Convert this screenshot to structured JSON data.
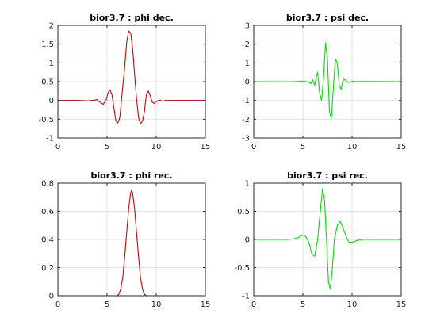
{
  "chart_data": [
    {
      "type": "line",
      "title": "bior3.7 : phi dec.",
      "xlim": [
        0,
        15
      ],
      "ylim": [
        -1,
        2
      ],
      "xticks": [
        0,
        5,
        10,
        15
      ],
      "yticks": [
        -1,
        -0.5,
        0,
        0.5,
        1,
        1.5,
        2
      ],
      "grid": true,
      "color": "#cc0000",
      "series": [
        {
          "x": [
            0,
            1,
            2,
            3,
            3.5,
            4,
            4.3,
            4.6,
            4.9,
            5.1,
            5.3,
            5.5,
            5.7,
            5.9,
            6.1,
            6.3,
            6.5,
            6.8,
            7.0,
            7.2,
            7.4,
            7.6,
            7.8,
            8.0,
            8.2,
            8.4,
            8.6,
            8.8,
            9.0,
            9.2,
            9.4,
            9.6,
            9.8,
            10.0,
            10.3,
            10.6,
            11,
            12,
            13,
            14,
            15
          ],
          "y": [
            0,
            0,
            0,
            -0.01,
            0,
            0.02,
            -0.05,
            -0.1,
            0.0,
            0.2,
            0.28,
            0.15,
            -0.2,
            -0.55,
            -0.6,
            -0.45,
            0.1,
            0.9,
            1.55,
            1.85,
            1.8,
            1.4,
            0.7,
            0.05,
            -0.45,
            -0.62,
            -0.55,
            -0.3,
            0.15,
            0.25,
            0.12,
            -0.05,
            -0.08,
            -0.03,
            0.01,
            -0.02,
            0,
            0,
            0,
            0,
            0
          ]
        }
      ]
    },
    {
      "type": "line",
      "title": "bior3.7 : psi dec.",
      "xlim": [
        0,
        15
      ],
      "ylim": [
        -3,
        3
      ],
      "xticks": [
        0,
        5,
        10,
        15
      ],
      "yticks": [
        -3,
        -2,
        -1,
        0,
        1,
        2,
        3
      ],
      "grid": true,
      "color": "#00dd00",
      "series": [
        {
          "x": [
            0,
            4,
            5,
            5.5,
            5.8,
            6.0,
            6.2,
            6.4,
            6.5,
            6.7,
            6.9,
            7.1,
            7.3,
            7.5,
            7.7,
            7.9,
            8.1,
            8.3,
            8.5,
            8.7,
            8.9,
            9.1,
            9.3,
            9.6,
            10.0,
            10.5,
            11,
            15
          ],
          "y": [
            0,
            0,
            0.02,
            0.0,
            -0.1,
            0.1,
            -0.2,
            0.35,
            0.5,
            -0.6,
            -1.0,
            0.2,
            2.05,
            1.2,
            -1.6,
            -1.95,
            -0.3,
            1.2,
            1.0,
            -0.2,
            -0.4,
            0.15,
            0.1,
            -0.05,
            0.02,
            0.0,
            0.01,
            0
          ]
        }
      ]
    },
    {
      "type": "line",
      "title": "bior3.7 : phi rec.",
      "xlim": [
        0,
        15
      ],
      "ylim": [
        0,
        0.8
      ],
      "xticks": [
        0,
        5,
        10,
        15
      ],
      "yticks": [
        0,
        0.2,
        0.4,
        0.6,
        0.8
      ],
      "grid": true,
      "color": "#cc0000",
      "series": [
        {
          "x": [
            0,
            5,
            6.0,
            6.2,
            6.4,
            6.6,
            6.8,
            7.0,
            7.2,
            7.4,
            7.5,
            7.6,
            7.8,
            8.0,
            8.2,
            8.4,
            8.6,
            8.8,
            9.0,
            10,
            15
          ],
          "y": [
            0,
            0,
            0,
            0.01,
            0.05,
            0.13,
            0.28,
            0.45,
            0.62,
            0.73,
            0.75,
            0.73,
            0.62,
            0.45,
            0.28,
            0.13,
            0.05,
            0.01,
            0,
            0,
            0
          ]
        }
      ]
    },
    {
      "type": "line",
      "title": "bior3.7 : psi rec.",
      "xlim": [
        0,
        15
      ],
      "ylim": [
        -1,
        1
      ],
      "xticks": [
        0,
        5,
        10,
        15
      ],
      "yticks": [
        -1,
        -0.5,
        0,
        0.5,
        1
      ],
      "grid": true,
      "color": "#00dd00",
      "series": [
        {
          "x": [
            0,
            3.5,
            4.0,
            4.5,
            5.0,
            5.3,
            5.6,
            5.9,
            6.2,
            6.5,
            6.8,
            7.0,
            7.2,
            7.4,
            7.6,
            7.8,
            8.0,
            8.2,
            8.5,
            8.8,
            9.1,
            9.4,
            9.7,
            10.0,
            10.5,
            11.0,
            12,
            15
          ],
          "y": [
            0,
            0,
            0.01,
            0.03,
            0.08,
            0.05,
            -0.05,
            -0.25,
            -0.3,
            0.0,
            0.55,
            0.9,
            0.7,
            0.0,
            -0.75,
            -0.88,
            -0.5,
            0.0,
            0.25,
            0.32,
            0.2,
            0.05,
            -0.05,
            -0.05,
            -0.02,
            0.0,
            0,
            0
          ]
        }
      ]
    }
  ]
}
